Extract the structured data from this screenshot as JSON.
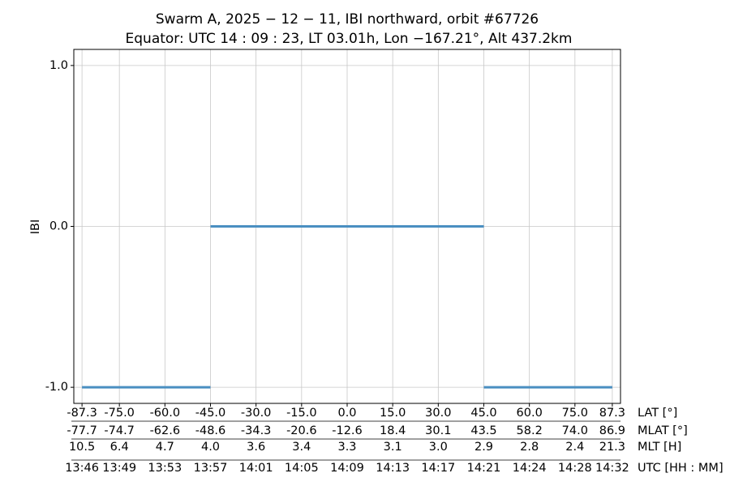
{
  "chart_data": {
    "type": "line",
    "title": "Swarm A,  2025 − 12 − 11,  IBI northward,  orbit #67726",
    "subtitle": "Equator:  UTC 14 : 09 : 23,  LT 03.01h,  Lon  −167.21°,  Alt 437.2km",
    "ylabel": "IBI",
    "xlabel": "LAT [°]",
    "color": "#4a8fc1",
    "grid": true,
    "x": [
      -87.3,
      -45,
      null,
      -45,
      45,
      null,
      45,
      87.3
    ],
    "values": [
      -1,
      -1,
      null,
      0,
      0,
      null,
      -1,
      -1
    ],
    "xlim": [
      -90,
      90
    ],
    "ylim": [
      -1.1,
      1.1
    ],
    "yticks": [
      {
        "value": -1,
        "label": "-1.0"
      },
      {
        "value": 0,
        "label": "0.0"
      },
      {
        "value": 1,
        "label": "1.0"
      }
    ],
    "xticks": [
      {
        "value": -87.3,
        "label": "-87.3"
      },
      {
        "value": -75,
        "label": "-75.0"
      },
      {
        "value": -60,
        "label": "-60.0"
      },
      {
        "value": -45,
        "label": "-45.0"
      },
      {
        "value": -30,
        "label": "-30.0"
      },
      {
        "value": -15,
        "label": "-15.0"
      },
      {
        "value": 0,
        "label": "0.0"
      },
      {
        "value": 15,
        "label": "15.0"
      },
      {
        "value": 30,
        "label": "30.0"
      },
      {
        "value": 45,
        "label": "45.0"
      },
      {
        "value": 60,
        "label": "60.0"
      },
      {
        "value": 75,
        "label": "75.0"
      },
      {
        "value": 87.3,
        "label": "87.3"
      }
    ],
    "xtick_rows": [
      {
        "label": "MLAT [°]",
        "labels": [
          "-77.7",
          "-74.7",
          "-62.6",
          "-48.6",
          "-34.3",
          "-20.6",
          "-12.6",
          "18.4",
          "30.1",
          "43.5",
          "58.2",
          "74.0",
          "86.9"
        ]
      },
      {
        "label": "MLT [H]",
        "labels": [
          "10.5",
          "6.4",
          "4.7",
          "4.0",
          "3.6",
          "3.4",
          "3.3",
          "3.1",
          "3.0",
          "2.9",
          "2.8",
          "2.4",
          "21.3"
        ]
      },
      {
        "label": "UTC [HH : MM]",
        "labels": [
          "13:46",
          "13:49",
          "13:53",
          "13:57",
          "14:01",
          "14:05",
          "14:09",
          "14:13",
          "14:17",
          "14:21",
          "14:24",
          "14:28",
          "14:32"
        ]
      }
    ]
  }
}
